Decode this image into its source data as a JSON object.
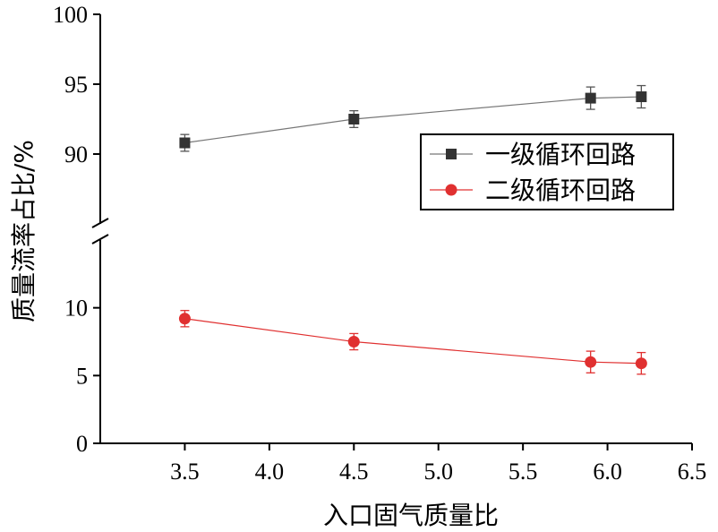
{
  "chart_data": {
    "type": "line",
    "xlabel": "入口固气质量比",
    "ylabel": "质量流率占比/%",
    "xlim": [
      3.0,
      6.5
    ],
    "x_ticks": [
      "3.5",
      "4.0",
      "4.5",
      "5.0",
      "5.5",
      "6.0",
      "6.5"
    ],
    "x_tick_values": [
      3.5,
      4.0,
      4.5,
      5.0,
      5.5,
      6.0,
      6.5
    ],
    "y_axis_broken": true,
    "y_lower_range": [
      0,
      15
    ],
    "y_upper_range": [
      85,
      100
    ],
    "y_ticks": [
      "0",
      "5",
      "10",
      "90",
      "95",
      "100"
    ],
    "y_tick_values": [
      0,
      5,
      10,
      90,
      95,
      100
    ],
    "legend_position": "right",
    "series": [
      {
        "name": "一级循环回路",
        "color": "#333333",
        "marker": "square",
        "x": [
          3.5,
          4.5,
          5.9,
          6.2
        ],
        "y": [
          90.8,
          92.5,
          94.0,
          94.1
        ],
        "error": [
          0.6,
          0.6,
          0.8,
          0.8
        ]
      },
      {
        "name": "二级循环回路",
        "color": "#e03030",
        "marker": "circle",
        "x": [
          3.5,
          4.5,
          5.9,
          6.2
        ],
        "y": [
          9.2,
          7.5,
          6.0,
          5.9
        ],
        "error": [
          0.6,
          0.6,
          0.8,
          0.8
        ]
      }
    ]
  }
}
